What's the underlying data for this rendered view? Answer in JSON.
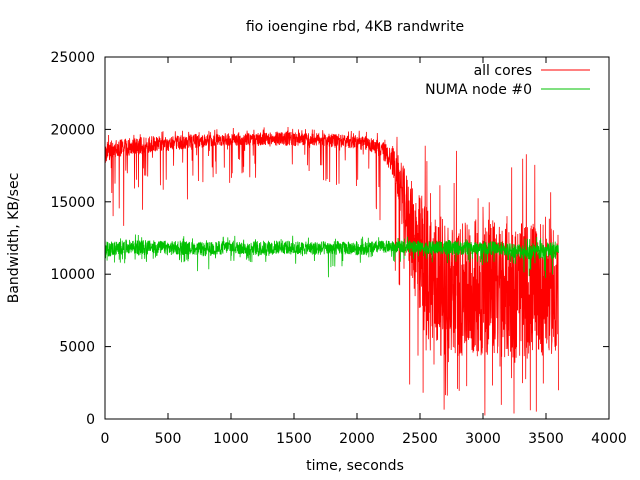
{
  "chart_data": {
    "type": "line",
    "title": "fio ioengine rbd, 4KB randwrite",
    "xlabel": "time, seconds",
    "ylabel": "Bandwidth, KB/sec",
    "xlim": [
      0,
      4000
    ],
    "ylim": [
      0,
      25000
    ],
    "xticks": [
      "0",
      "500",
      "1000",
      "1500",
      "2000",
      "2500",
      "3000",
      "3500",
      "4000"
    ],
    "yticks": [
      "0",
      "5000",
      "10000",
      "15000",
      "20000",
      "25000"
    ],
    "grid": false,
    "legend_position": "top-right",
    "series": [
      {
        "name": "all cores",
        "color": "#ff0000",
        "x": [
          0,
          100,
          200,
          300,
          400,
          500,
          600,
          700,
          800,
          900,
          1000,
          1100,
          1200,
          1300,
          1400,
          1500,
          1600,
          1700,
          1800,
          1900,
          2000,
          2100,
          2200,
          2300,
          2400,
          2500,
          2600,
          2700,
          2800,
          2900,
          3000,
          3100,
          3200,
          3300,
          3400,
          3500,
          3600
        ],
        "values": [
          18400,
          18700,
          18800,
          18900,
          19000,
          19000,
          19100,
          19200,
          19200,
          19300,
          19300,
          19300,
          19300,
          19300,
          19400,
          19300,
          19300,
          19300,
          19200,
          19200,
          19100,
          19000,
          18600,
          17600,
          14000,
          11000,
          9500,
          9000,
          8800,
          9000,
          9200,
          9000,
          8900,
          8800,
          9000,
          9200,
          9000
        ],
        "min": [
          13000,
          14000,
          12000,
          14000,
          14500,
          15000,
          15500,
          14000,
          15000,
          16000,
          16000,
          16500,
          16000,
          15500,
          16000,
          16500,
          16500,
          16500,
          16000,
          16000,
          15500,
          14000,
          12000,
          9000,
          2000,
          1000,
          500,
          300,
          500,
          400,
          200,
          300,
          400,
          300,
          200,
          500,
          800
        ],
        "max": [
          19800,
          19800,
          19900,
          20000,
          20000,
          19900,
          20000,
          20100,
          20000,
          20100,
          20100,
          20100,
          20100,
          20200,
          20300,
          20200,
          20100,
          20100,
          20100,
          20000,
          20000,
          19900,
          19700,
          19600,
          19300,
          19200,
          19000,
          18900,
          18800,
          18900,
          18800,
          18700,
          18700,
          18600,
          18500,
          18600,
          19700
        ]
      },
      {
        "name": "NUMA node #0",
        "color": "#00c000",
        "x": [
          0,
          100,
          200,
          300,
          400,
          500,
          600,
          700,
          800,
          900,
          1000,
          1100,
          1200,
          1300,
          1400,
          1500,
          1600,
          1700,
          1800,
          1900,
          2000,
          2100,
          2200,
          2300,
          2400,
          2500,
          2600,
          2700,
          2800,
          2900,
          3000,
          3100,
          3200,
          3300,
          3400,
          3500,
          3600
        ],
        "values": [
          11700,
          11800,
          11900,
          11800,
          11900,
          11800,
          11800,
          11800,
          11700,
          11800,
          11900,
          11800,
          11800,
          11800,
          11900,
          11800,
          11800,
          11800,
          11800,
          11800,
          11800,
          11800,
          11900,
          11900,
          11900,
          11900,
          11800,
          11900,
          11800,
          11800,
          11800,
          11800,
          11700,
          11600,
          11500,
          11600,
          11700
        ],
        "min": [
          10500,
          10700,
          10800,
          10700,
          10800,
          10700,
          10600,
          10700,
          8700,
          10600,
          10800,
          10700,
          10700,
          10600,
          10800,
          10700,
          10700,
          10600,
          9400,
          10700,
          10800,
          10700,
          10800,
          10700,
          10700,
          10800,
          10700,
          10700,
          10600,
          10600,
          10600,
          10600,
          10500,
          10000,
          9500,
          8000,
          10500
        ],
        "max": [
          12700,
          12700,
          12800,
          12800,
          12700,
          12700,
          12700,
          12600,
          12600,
          12700,
          12700,
          12600,
          12700,
          12800,
          12700,
          12700,
          12600,
          12700,
          12700,
          12600,
          12700,
          12600,
          12700,
          12600,
          12700,
          12600,
          12700,
          12800,
          12700,
          12600,
          12600,
          12700,
          12600,
          12600,
          12600,
          12700,
          12800
        ]
      }
    ]
  }
}
